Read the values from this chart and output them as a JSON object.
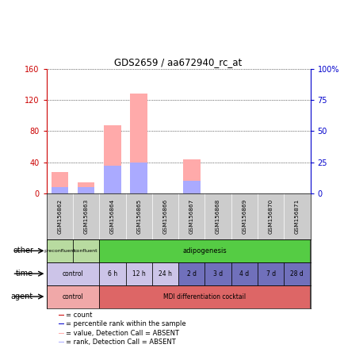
{
  "title": "GDS2659 / aa672940_rc_at",
  "samples": [
    "GSM156862",
    "GSM156863",
    "GSM156864",
    "GSM156865",
    "GSM156866",
    "GSM156867",
    "GSM156868",
    "GSM156869",
    "GSM156870",
    "GSM156871"
  ],
  "bar_values_pink": [
    28,
    14,
    88,
    128,
    0,
    44,
    0,
    0,
    0,
    0
  ],
  "bar_values_blue": [
    8,
    8,
    36,
    40,
    0,
    16,
    0,
    0,
    0,
    0
  ],
  "ylim_left": [
    0,
    160
  ],
  "ylim_right": [
    0,
    100
  ],
  "yticks_left": [
    0,
    40,
    80,
    120,
    160
  ],
  "yticks_right": [
    0,
    25,
    50,
    75,
    100
  ],
  "ytick_labels_right": [
    "0",
    "25",
    "50",
    "75",
    "100%"
  ],
  "other_spans": [
    1,
    1,
    8
  ],
  "other_labels": [
    "preconfluent",
    "confluent",
    "adipogenesis"
  ],
  "other_colors": [
    "#b8dba0",
    "#b8dba0",
    "#55cc44"
  ],
  "time_spans": [
    2,
    1,
    1,
    1,
    1,
    1,
    1,
    1,
    1
  ],
  "time_labels": [
    "control",
    "6 h",
    "12 h",
    "24 h",
    "2 d",
    "3 d",
    "4 d",
    "7 d",
    "28 d"
  ],
  "time_colors": [
    "#ccc4e8",
    "#ccc4e8",
    "#ccc4e8",
    "#ccc4e8",
    "#7070bb",
    "#7070bb",
    "#7070bb",
    "#7070bb",
    "#7070bb"
  ],
  "agent_spans": [
    2,
    8
  ],
  "agent_labels": [
    "control",
    "MDI differentiation cocktail"
  ],
  "agent_colors": [
    "#f0a8a8",
    "#dd6666"
  ],
  "legend_items": [
    {
      "color": "#cc0000",
      "label": "count"
    },
    {
      "color": "#0000cc",
      "label": "percentile rank within the sample"
    },
    {
      "color": "#ffaaaa",
      "label": "value, Detection Call = ABSENT"
    },
    {
      "color": "#aaaaff",
      "label": "rank, Detection Call = ABSENT"
    }
  ],
  "row_labels": [
    "other",
    "time",
    "agent"
  ],
  "bar_color_pink": "#ffaaaa",
  "bar_color_blue": "#aaaaff",
  "bg_color": "#ffffff",
  "tick_color_left": "#cc0000",
  "tick_color_right": "#0000cc",
  "sample_bg": "#cccccc"
}
